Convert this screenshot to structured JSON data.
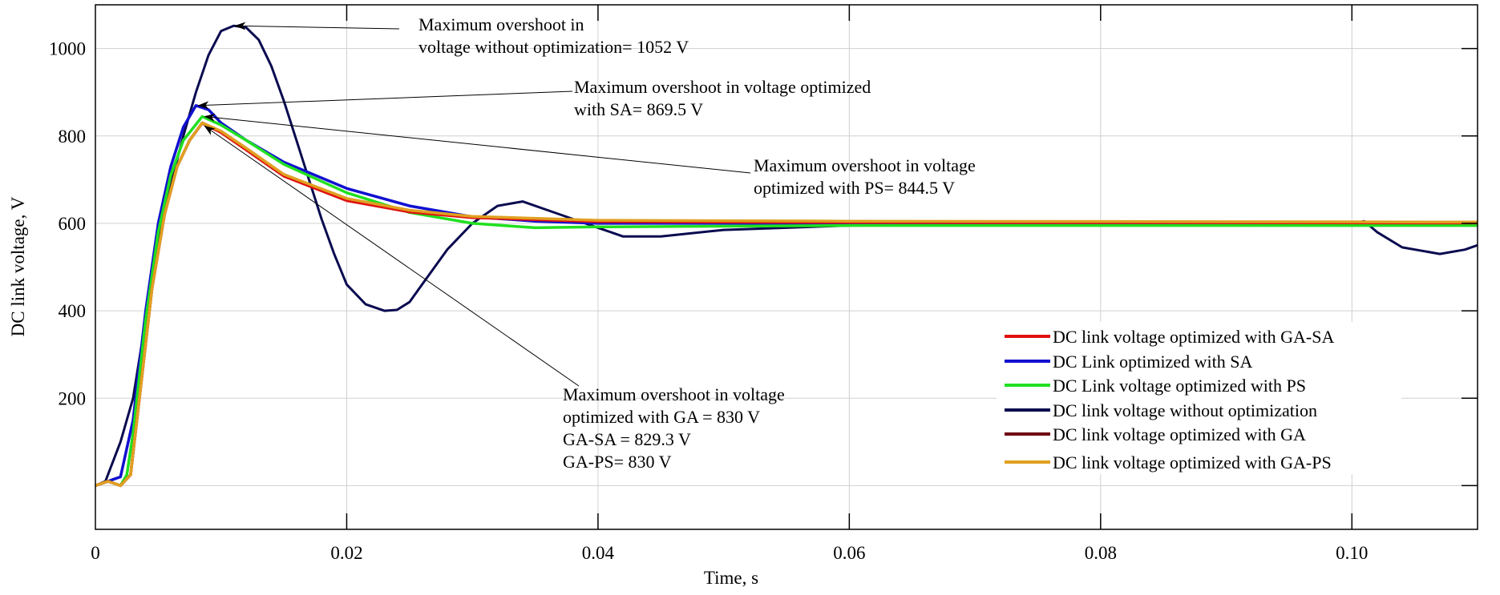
{
  "chart_data": {
    "type": "line",
    "title": "",
    "xlabel": "Time, s",
    "ylabel": "DC link voltage, V",
    "xlim": [
      0,
      0.11
    ],
    "ylim": [
      -100,
      1100
    ],
    "grid": true,
    "legend_position": "center-right",
    "x_ticks": [
      {
        "value": 0,
        "label": "0"
      },
      {
        "value": 0.02,
        "label": "0.02"
      },
      {
        "value": 0.04,
        "label": "0.04"
      },
      {
        "value": 0.06,
        "label": "0.06"
      },
      {
        "value": 0.08,
        "label": "0.08"
      },
      {
        "value": 0.1,
        "label": "0.10"
      }
    ],
    "y_ticks": [
      {
        "value": 200,
        "label": "200"
      },
      {
        "value": 400,
        "label": "400"
      },
      {
        "value": 600,
        "label": "600"
      },
      {
        "value": 800,
        "label": "800"
      },
      {
        "value": 1000,
        "label": "1000"
      }
    ],
    "series": [
      {
        "name": "DC link voltage without optimization",
        "color": "#0a0a50",
        "x": [
          0,
          0.0008,
          0.002,
          0.003,
          0.004,
          0.005,
          0.006,
          0.007,
          0.008,
          0.009,
          0.01,
          0.011,
          0.012,
          0.013,
          0.014,
          0.015,
          0.016,
          0.017,
          0.018,
          0.019,
          0.02,
          0.0215,
          0.023,
          0.024,
          0.025,
          0.026,
          0.028,
          0.03,
          0.032,
          0.034,
          0.036,
          0.038,
          0.04,
          0.042,
          0.045,
          0.05,
          0.06,
          0.07,
          0.08,
          0.09,
          0.1,
          0.101,
          0.102,
          0.104,
          0.107,
          0.109,
          0.11
        ],
        "y": [
          0,
          10,
          100,
          200,
          380,
          560,
          690,
          800,
          900,
          985,
          1040,
          1052,
          1048,
          1020,
          960,
          880,
          790,
          700,
          610,
          530,
          460,
          415,
          400,
          402,
          420,
          460,
          540,
          600,
          640,
          650,
          630,
          610,
          590,
          570,
          570,
          585,
          595,
          598,
          600,
          600,
          600,
          605,
          580,
          545,
          530,
          540,
          550
        ]
      },
      {
        "name": "DC Link optimized with SA",
        "color": "#1010d0",
        "x": [
          0,
          0.001,
          0.0015,
          0.002,
          0.003,
          0.004,
          0.005,
          0.006,
          0.007,
          0.008,
          0.009,
          0.01,
          0.012,
          0.015,
          0.02,
          0.025,
          0.03,
          0.035,
          0.04,
          0.06,
          0.11
        ],
        "y": [
          0,
          10,
          15,
          20,
          150,
          400,
          600,
          730,
          820,
          869.5,
          860,
          830,
          790,
          740,
          680,
          640,
          615,
          605,
          600,
          600,
          600
        ]
      },
      {
        "name": "DC Link voltage optimized with PS",
        "color": "#20e020",
        "x": [
          0,
          0.001,
          0.002,
          0.0025,
          0.003,
          0.004,
          0.005,
          0.006,
          0.007,
          0.0085,
          0.01,
          0.012,
          0.015,
          0.02,
          0.025,
          0.03,
          0.035,
          0.04,
          0.06,
          0.11
        ],
        "y": [
          0,
          10,
          0,
          25,
          120,
          380,
          580,
          710,
          790,
          844.5,
          825,
          790,
          735,
          670,
          625,
          600,
          590,
          592,
          595,
          595
        ]
      },
      {
        "name": "DC link voltage optimized with GA",
        "color": "#700010",
        "x": [
          0,
          0.001,
          0.002,
          0.0028,
          0.0035,
          0.0045,
          0.0055,
          0.0065,
          0.0075,
          0.0085,
          0.01,
          0.012,
          0.015,
          0.02,
          0.025,
          0.03,
          0.04,
          0.06,
          0.11
        ],
        "y": [
          0,
          10,
          0,
          25,
          200,
          450,
          620,
          730,
          790,
          830,
          810,
          770,
          710,
          655,
          628,
          614,
          605,
          603,
          602
        ]
      },
      {
        "name": "DC link voltage optimized with GA-SA",
        "color": "#e01010",
        "x": [
          0,
          0.001,
          0.002,
          0.0028,
          0.0035,
          0.0045,
          0.0055,
          0.0065,
          0.0075,
          0.0085,
          0.01,
          0.012,
          0.015,
          0.02,
          0.025,
          0.03,
          0.04,
          0.06,
          0.11
        ],
        "y": [
          0,
          10,
          0,
          25,
          200,
          450,
          620,
          730,
          790,
          829.3,
          808,
          768,
          708,
          652,
          626,
          613,
          604,
          602,
          601
        ]
      },
      {
        "name": "DC link voltage optimized with GA-PS",
        "color": "#e0a020",
        "x": [
          0,
          0.001,
          0.002,
          0.0028,
          0.0035,
          0.0045,
          0.0055,
          0.0065,
          0.0075,
          0.0085,
          0.01,
          0.012,
          0.015,
          0.02,
          0.025,
          0.03,
          0.04,
          0.06,
          0.11
        ],
        "y": [
          0,
          10,
          0,
          25,
          200,
          450,
          620,
          730,
          790,
          830,
          811,
          772,
          712,
          657,
          630,
          616,
          607,
          605,
          603
        ]
      }
    ],
    "legend_order": [
      4,
      1,
      2,
      0,
      3,
      5
    ],
    "annotations": [
      {
        "lines": [
          "Maximum overshoot in",
          "voltage without optimization= 1052 V"
        ],
        "target": {
          "x": 0.011,
          "y": 1052
        }
      },
      {
        "lines": [
          "Maximum overshoot in voltage optimized",
          "with SA= 869.5 V"
        ],
        "target": {
          "x": 0.008,
          "y": 869.5
        }
      },
      {
        "lines": [
          "Maximum overshoot in voltage",
          "optimized with PS= 844.5 V"
        ],
        "target": {
          "x": 0.0085,
          "y": 844.5
        }
      },
      {
        "lines": [
          "Maximum overshoot in voltage",
          "optimized with GA = 830 V",
          "GA-SA = 829.3 V",
          "GA-PS= 830 V"
        ],
        "target": {
          "x": 0.0085,
          "y": 830
        }
      }
    ]
  }
}
